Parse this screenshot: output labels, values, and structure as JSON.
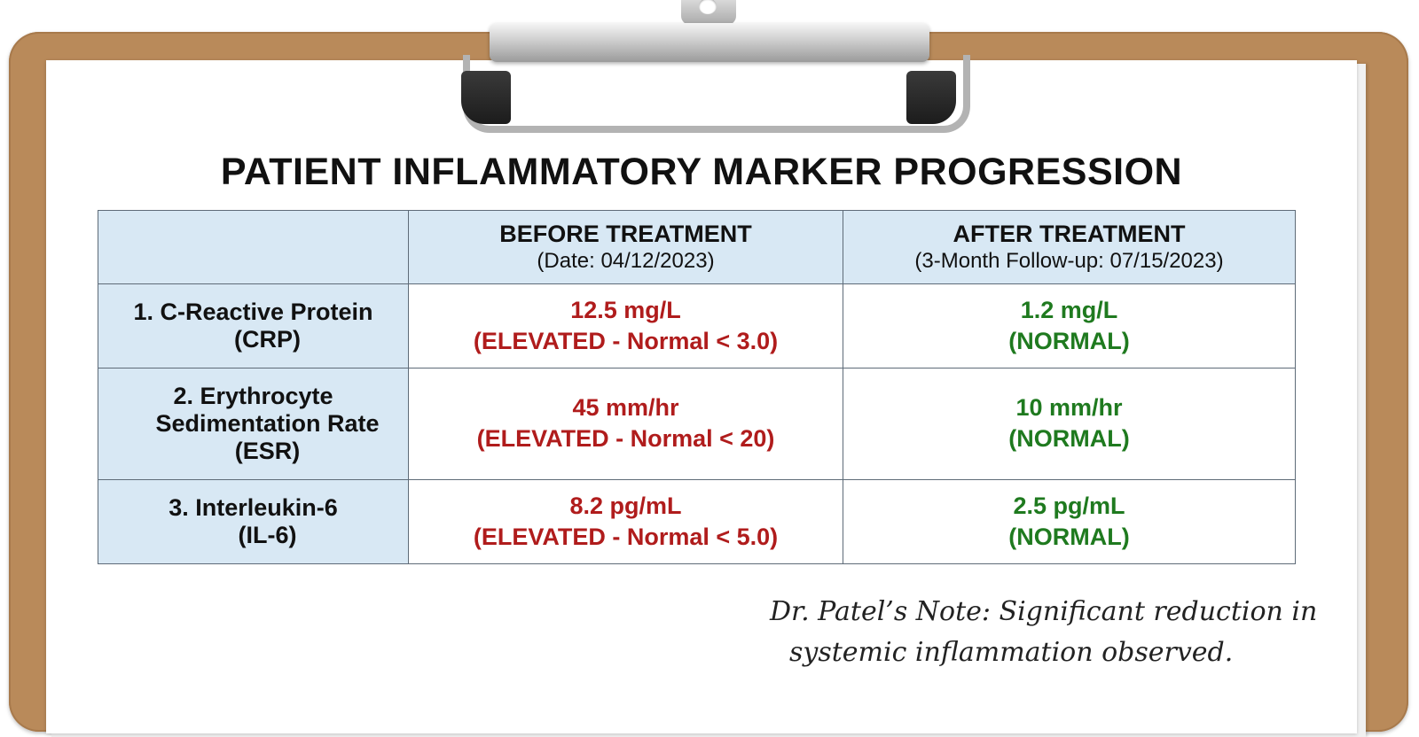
{
  "title": "PATIENT INFLAMMATORY MARKER PROGRESSION",
  "columns": {
    "before": {
      "label": "BEFORE TREATMENT",
      "sub": "(Date: 04/12/2023)"
    },
    "after": {
      "label": "AFTER TREATMENT",
      "sub": "(3-Month Follow-up: 07/15/2023)"
    }
  },
  "rows": [
    {
      "name_lines": [
        "1. C-Reactive Protein",
        "(CRP)"
      ],
      "before": {
        "value": "12.5 mg/L",
        "status": "(ELEVATED - Normal < 3.0)"
      },
      "after": {
        "value": "1.2 mg/L",
        "status": "(NORMAL)"
      }
    },
    {
      "name_lines": [
        "2. Erythrocyte",
        "Sedimentation Rate",
        "(ESR)"
      ],
      "before": {
        "value": "45 mm/hr",
        "status": "(ELEVATED - Normal < 20)"
      },
      "after": {
        "value": "10 mm/hr",
        "status": "(NORMAL)"
      }
    },
    {
      "name_lines": [
        "3. Interleukin-6",
        "(IL-6)"
      ],
      "before": {
        "value": "8.2 pg/mL",
        "status": "(ELEVATED - Normal < 5.0)"
      },
      "after": {
        "value": "2.5 pg/mL",
        "status": "(NORMAL)"
      }
    }
  ],
  "note": {
    "line1": "Dr. Patel’s Note: Significant reduction in",
    "line2": "systemic inflammation observed."
  },
  "colors": {
    "elevated": "#b01c1c",
    "normal": "#1f7a1f",
    "header_fill": "#d8e8f4",
    "clipboard": "#b98a5a"
  }
}
